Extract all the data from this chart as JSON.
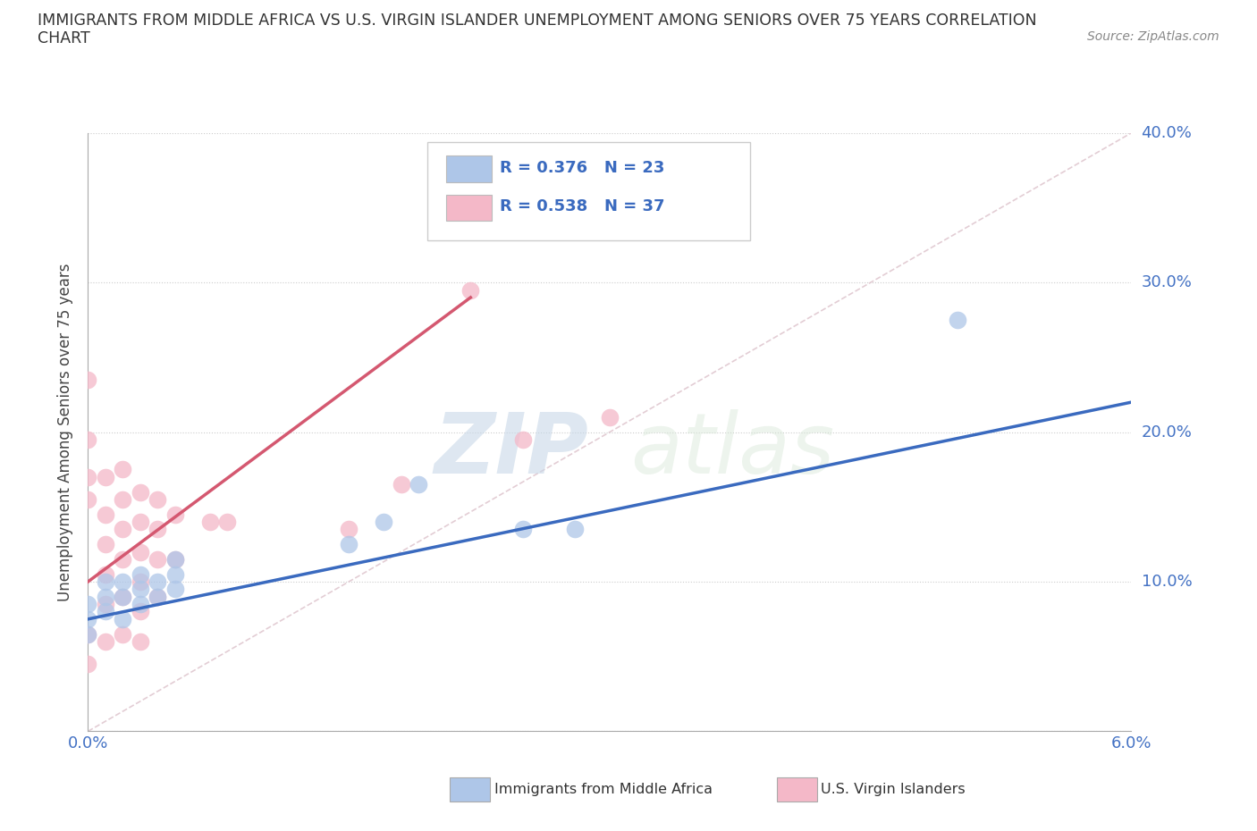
{
  "title_line1": "IMMIGRANTS FROM MIDDLE AFRICA VS U.S. VIRGIN ISLANDER UNEMPLOYMENT AMONG SENIORS OVER 75 YEARS CORRELATION",
  "title_line2": "CHART",
  "source": "Source: ZipAtlas.com",
  "ylabel": "Unemployment Among Seniors over 75 years",
  "xlim": [
    0.0,
    0.06
  ],
  "ylim": [
    0.0,
    0.4
  ],
  "blue_R": 0.376,
  "blue_N": 23,
  "pink_R": 0.538,
  "pink_N": 37,
  "blue_scatter_x": [
    0.0,
    0.0,
    0.0,
    0.001,
    0.001,
    0.001,
    0.002,
    0.002,
    0.002,
    0.003,
    0.003,
    0.003,
    0.004,
    0.004,
    0.005,
    0.005,
    0.005,
    0.015,
    0.017,
    0.019,
    0.025,
    0.028,
    0.05
  ],
  "blue_scatter_y": [
    0.075,
    0.085,
    0.065,
    0.08,
    0.09,
    0.1,
    0.09,
    0.1,
    0.075,
    0.085,
    0.095,
    0.105,
    0.09,
    0.1,
    0.095,
    0.105,
    0.115,
    0.125,
    0.14,
    0.165,
    0.135,
    0.135,
    0.275
  ],
  "pink_scatter_x": [
    0.0,
    0.0,
    0.0,
    0.0,
    0.0,
    0.0,
    0.001,
    0.001,
    0.001,
    0.001,
    0.001,
    0.001,
    0.002,
    0.002,
    0.002,
    0.002,
    0.002,
    0.002,
    0.003,
    0.003,
    0.003,
    0.003,
    0.003,
    0.003,
    0.004,
    0.004,
    0.004,
    0.004,
    0.005,
    0.005,
    0.007,
    0.008,
    0.015,
    0.018,
    0.022,
    0.025,
    0.03
  ],
  "pink_scatter_y": [
    0.235,
    0.195,
    0.17,
    0.155,
    0.065,
    0.045,
    0.17,
    0.145,
    0.125,
    0.105,
    0.085,
    0.06,
    0.175,
    0.155,
    0.135,
    0.115,
    0.09,
    0.065,
    0.16,
    0.14,
    0.12,
    0.1,
    0.08,
    0.06,
    0.155,
    0.135,
    0.115,
    0.09,
    0.145,
    0.115,
    0.14,
    0.14,
    0.135,
    0.165,
    0.295,
    0.195,
    0.21
  ],
  "blue_line_x": [
    0.0,
    0.06
  ],
  "blue_line_y": [
    0.075,
    0.22
  ],
  "pink_line_x": [
    0.0,
    0.022
  ],
  "pink_line_y": [
    0.1,
    0.29
  ],
  "diag_line_x": [
    0.0,
    0.06
  ],
  "diag_line_y": [
    0.0,
    0.4
  ],
  "blue_color": "#aec6e8",
  "pink_color": "#f4b8c8",
  "blue_line_color": "#3a6abf",
  "pink_line_color": "#d45870",
  "diag_color": "#e0c8d0",
  "watermark_zip": "ZIP",
  "watermark_atlas": "atlas",
  "legend_label_blue": "Immigrants from Middle Africa",
  "legend_label_pink": "U.S. Virgin Islanders"
}
